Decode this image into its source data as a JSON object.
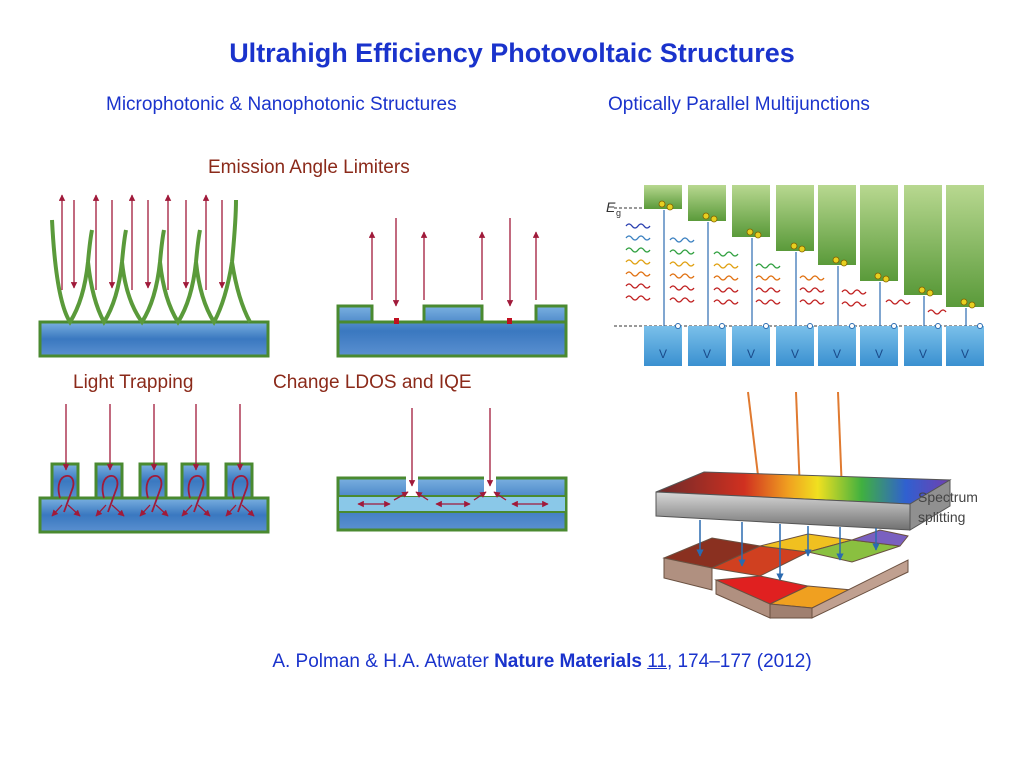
{
  "title": "Ultrahigh Efficiency Photovoltaic Structures",
  "headers": {
    "left": "Microphotonic & Nanophotonic Structures",
    "right": "Optically Parallel Multijunctions"
  },
  "panels": {
    "emission_angle": "Emission Angle Limiters",
    "light_trapping": "Light Trapping",
    "ldos": "Change LDOS and IQE"
  },
  "bandgap_diagram": {
    "eg_symbol": "E",
    "eg_subscript": "g",
    "terminal_label": "V"
  },
  "spectrum": {
    "label_line1": "Spectrum",
    "label_line2": "splitting"
  },
  "citation": {
    "authors": "A. Polman & H.A. Atwater ",
    "journal": "Nature Materials",
    "volume": "11",
    "rest": ", 174–177 (2012)"
  },
  "colors": {
    "title": "#1a33cc",
    "subtitle": "#8b2a1a",
    "arrow": "#a01a3a",
    "substrate_green": "#5a9a3a",
    "substrate_blue": "#3a7ac8"
  }
}
